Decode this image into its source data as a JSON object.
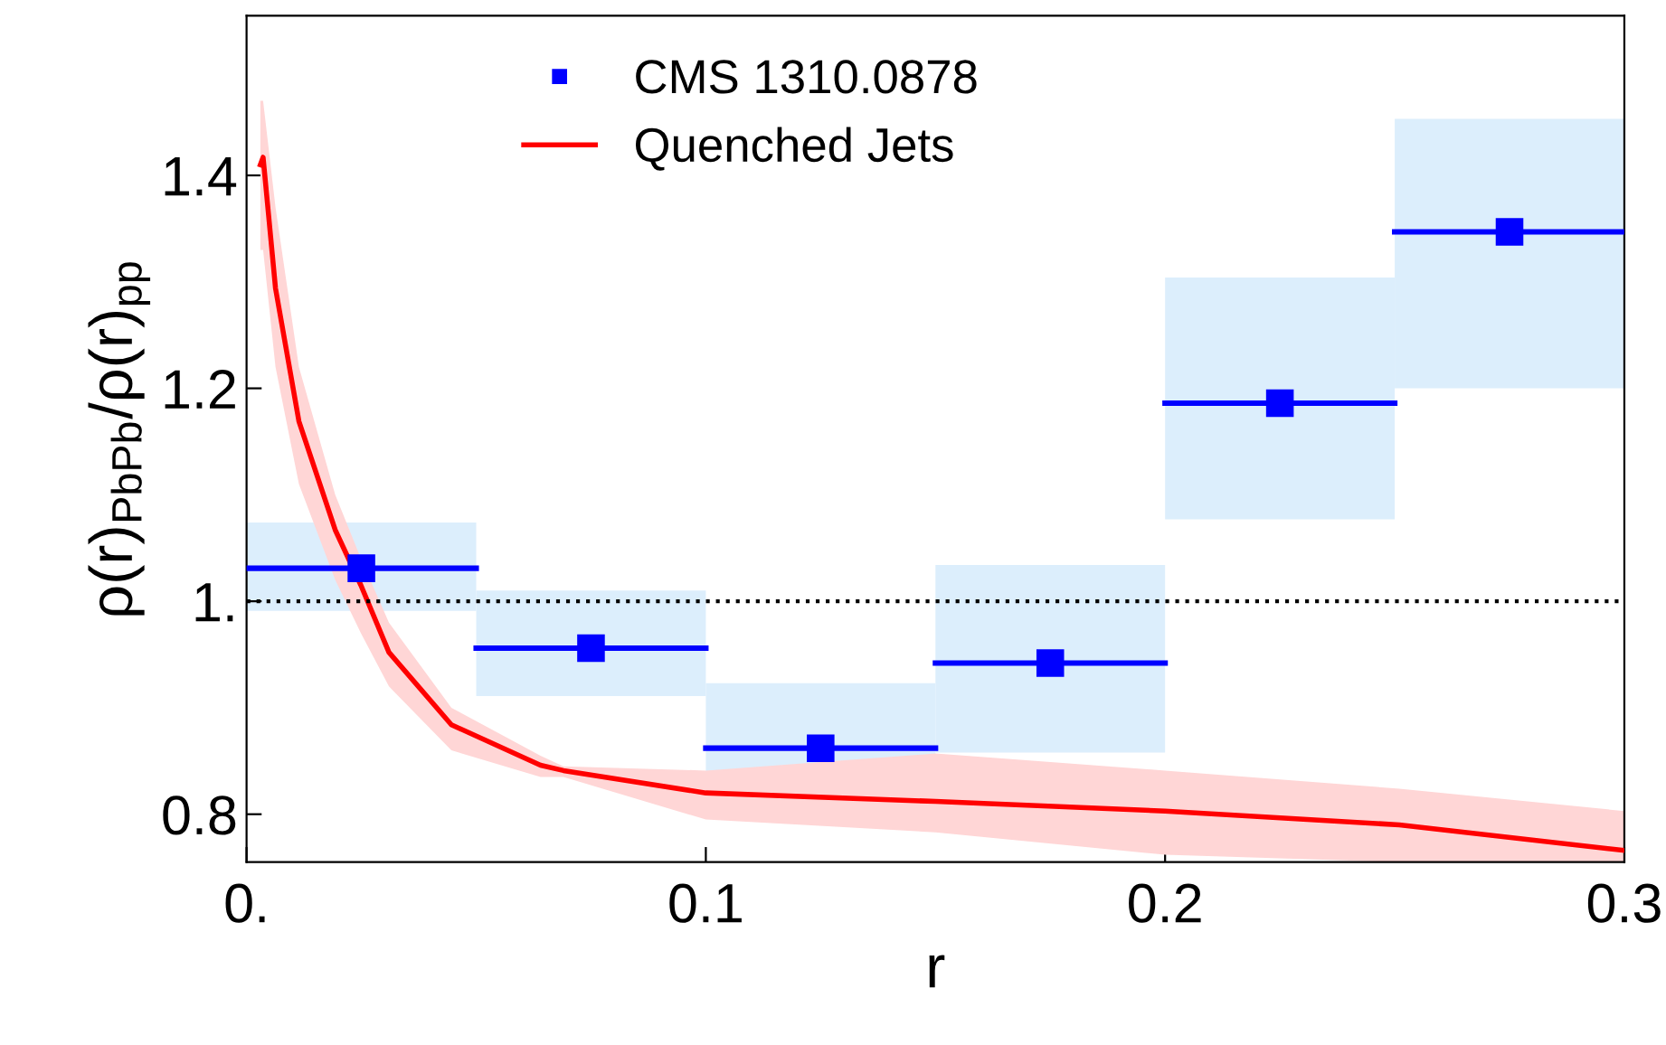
{
  "chart_data": {
    "type": "scatter",
    "xlabel": "r",
    "ylabel": "ρ(r)$_{PbPb}$/ρ(r)$_{pp}$",
    "xlim": [
      0,
      0.3
    ],
    "ylim": [
      0.755,
      1.55
    ],
    "xticks": [
      {
        "value": 0,
        "label": "0."
      },
      0.1,
      0.2,
      0.3
    ],
    "yticks": [
      0.8,
      {
        "value": 1.0,
        "label": "1."
      },
      1.2,
      1.4
    ],
    "legend": "top left",
    "grid": false,
    "ref_lines": [
      {
        "axis": "y",
        "value": 1.0,
        "color": "#000000",
        "line_style": "dotted"
      }
    ],
    "series": [
      {
        "type": "bar",
        "color": "#dceefc",
        "x": [
          0.025,
          0.075,
          0.125,
          0.175,
          0.225,
          0.275
        ],
        "base": [
          0.991,
          0.911,
          0.798,
          0.858,
          1.077,
          1.2
        ],
        "values": [
          0.083,
          0.099,
          0.125,
          0.176,
          0.227,
          0.253
        ]
      },
      {
        "name": "CMS 1310.0878",
        "marker": "square",
        "color": "#0000ff",
        "x": [
          0.025,
          0.075,
          0.125,
          0.175,
          0.225,
          0.275
        ],
        "values": [
          1.031,
          0.956,
          0.862,
          0.942,
          1.186,
          1.347
        ],
        "xerrors": [
          0.025,
          0.025,
          0.025,
          0.025,
          0.025,
          0.025
        ]
      },
      {
        "name": "Quenched Jets",
        "type": "line",
        "marker": "none",
        "line_style": "solid",
        "color": "#ff0000",
        "x": [
          0.003,
          0.0036,
          0.0063,
          0.0114,
          0.0193,
          0.0249,
          0.031,
          0.0446,
          0.064,
          0.069,
          0.1,
          0.15,
          0.2,
          0.251,
          0.3
        ],
        "values": [
          1.41,
          1.417,
          1.294,
          1.169,
          1.067,
          1.015,
          0.952,
          0.884,
          0.846,
          0.841,
          0.82,
          0.812,
          0.803,
          0.79,
          0.766
        ],
        "lower": [
          1.33,
          1.33,
          1.22,
          1.11,
          1.02,
          0.97,
          0.92,
          0.86,
          0.835,
          0.835,
          0.795,
          0.783,
          0.762,
          0.755,
          0.755
        ],
        "upper": [
          1.47,
          1.47,
          1.37,
          1.22,
          1.1,
          1.04,
          0.98,
          0.9,
          0.855,
          0.845,
          0.841,
          0.857,
          0.841,
          0.824,
          0.803
        ]
      }
    ]
  }
}
